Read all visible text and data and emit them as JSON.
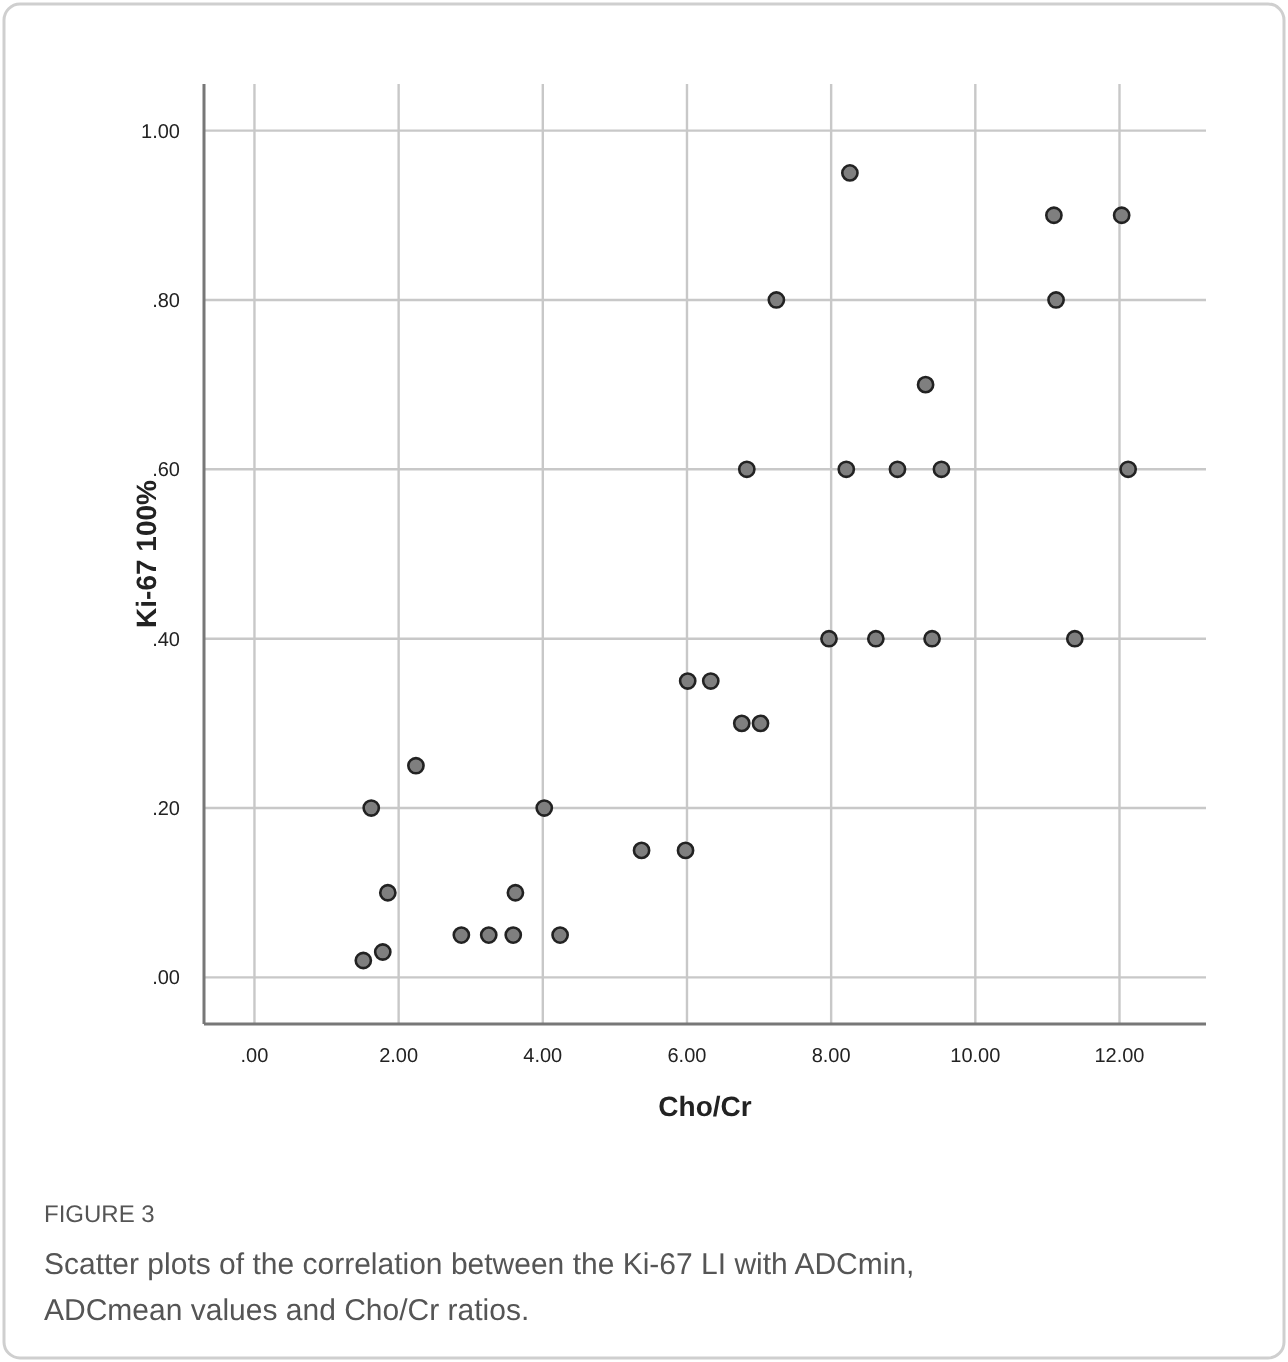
{
  "chart_data": {
    "type": "scatter",
    "xlabel": "Cho/Cr",
    "ylabel": "Ki-67 100%",
    "x": [
      8.26,
      11.09,
      12.03,
      7.24,
      11.12,
      9.31,
      6.83,
      8.21,
      8.92,
      9.53,
      12.12,
      7.97,
      8.62,
      9.4,
      11.38,
      6.01,
      6.33,
      6.76,
      7.02,
      2.24,
      1.62,
      4.02,
      5.37,
      5.98,
      1.85,
      3.62,
      2.87,
      3.25,
      3.59,
      4.24,
      1.51,
      1.78
    ],
    "series": [
      {
        "color": "#7f7f7f",
        "values": [
          0.95,
          0.9,
          0.9,
          0.8,
          0.8,
          0.7,
          0.6,
          0.6,
          0.6,
          0.6,
          0.6,
          0.4,
          0.4,
          0.4,
          0.4,
          0.35,
          0.35,
          0.3,
          0.3,
          0.25,
          0.2,
          0.2,
          0.15,
          0.15,
          0.1,
          0.1,
          0.05,
          0.05,
          0.05,
          0.05,
          0.02,
          0.03
        ]
      }
    ],
    "xlim": [
      -0.7,
      13.2
    ],
    "ylim": [
      -0.055,
      1.055
    ],
    "xticks": [
      {
        "value": 0,
        "label": ".00"
      },
      {
        "value": 2,
        "label": "2.00"
      },
      {
        "value": 4,
        "label": "4.00"
      },
      {
        "value": 6,
        "label": "6.00"
      },
      {
        "value": 8,
        "label": "8.00"
      },
      {
        "value": 10,
        "label": "10.00"
      },
      {
        "value": 12,
        "label": "12.00"
      }
    ],
    "yticks": [
      {
        "value": 0,
        "label": ".00"
      },
      {
        "value": 0.2,
        "label": ".20"
      },
      {
        "value": 0.4,
        "label": ".40"
      },
      {
        "value": 0.6,
        "label": ".60"
      },
      {
        "value": 0.8,
        "label": ".80"
      },
      {
        "value": 1,
        "label": "1.00"
      }
    ],
    "grid": true,
    "marker": "circle",
    "annotations": [
      "FIGURE 3",
      "Scatter plots of the correlation between the Ki-67 LI with ADCmin, ADCmean values and Cho/Cr ratios."
    ]
  }
}
